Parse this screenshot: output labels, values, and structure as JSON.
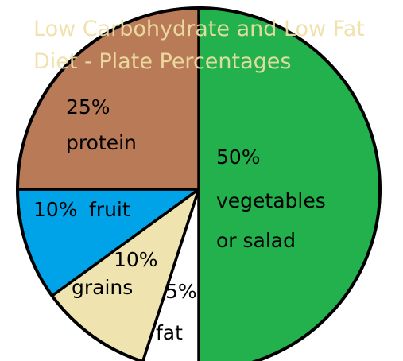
{
  "chart_data": {
    "type": "pie",
    "title": "Low Carbohydrate and Low Fat Diet - Plate Percentages",
    "categories": [
      "vegetables or salad",
      "fat",
      "grains",
      "fruit",
      "protein"
    ],
    "values": [
      50,
      5,
      10,
      10,
      25
    ],
    "value_labels": [
      "50%",
      "5%",
      "10%",
      "10%",
      "25%"
    ],
    "colors": [
      "#22b14c",
      "#ffffff",
      "#efe4b0",
      "#00a2e8",
      "#b97a57"
    ]
  }
}
